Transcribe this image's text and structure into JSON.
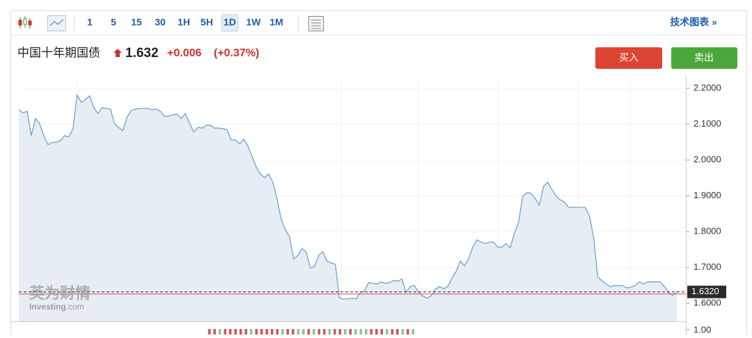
{
  "toolbar": {
    "intervals": [
      "1",
      "5",
      "15",
      "30",
      "1H",
      "5H",
      "1D",
      "1W",
      "1M"
    ],
    "selected": 6,
    "technical_link": "技术图表 »"
  },
  "header": {
    "price": "1.632",
    "change": "+0.006",
    "change_pct": "(+0.37%)",
    "buy": "买入",
    "sell": "卖出"
  },
  "watermark": {
    "brand": "英为财情",
    "site": "Investing",
    "domain": ".com"
  },
  "chart_data": {
    "type": "area",
    "title": "中国十年期国债",
    "color": "#6fa3cc",
    "fill": "#e6edf5",
    "values": [
      2.14,
      2.132,
      2.136,
      2.068,
      2.116,
      2.101,
      2.068,
      2.043,
      2.049,
      2.05,
      2.054,
      2.068,
      2.064,
      2.087,
      2.181,
      2.161,
      2.169,
      2.179,
      2.146,
      2.13,
      2.146,
      2.144,
      2.142,
      2.101,
      2.091,
      2.082,
      2.12,
      2.138,
      2.142,
      2.144,
      2.144,
      2.144,
      2.14,
      2.142,
      2.136,
      2.122,
      2.122,
      2.126,
      2.128,
      2.116,
      2.13,
      2.103,
      2.078,
      2.091,
      2.089,
      2.097,
      2.097,
      2.089,
      2.089,
      2.087,
      2.085,
      2.056,
      2.056,
      2.045,
      2.058,
      2.039,
      2.01,
      1.981,
      1.961,
      1.951,
      1.961,
      1.938,
      1.893,
      1.835,
      1.806,
      1.786,
      1.724,
      1.734,
      1.753,
      1.744,
      1.699,
      1.703,
      1.734,
      1.744,
      1.718,
      1.713,
      1.709,
      1.615,
      1.612,
      1.612,
      1.615,
      1.612,
      1.631,
      1.635,
      1.658,
      1.656,
      1.654,
      1.66,
      1.656,
      1.658,
      1.664,
      1.662,
      1.668,
      1.631,
      1.647,
      1.65,
      1.631,
      1.621,
      1.615,
      1.621,
      1.639,
      1.647,
      1.641,
      1.647,
      1.67,
      1.689,
      1.718,
      1.705,
      1.724,
      1.757,
      1.777,
      1.771,
      1.767,
      1.771,
      1.771,
      1.757,
      1.757,
      1.767,
      1.755,
      1.796,
      1.825,
      1.899,
      1.909,
      1.907,
      1.893,
      1.874,
      1.926,
      1.938,
      1.918,
      1.899,
      1.889,
      1.883,
      1.868,
      1.868,
      1.868,
      1.868,
      1.868,
      1.845,
      1.786,
      1.674,
      1.664,
      1.654,
      1.647,
      1.65,
      1.65,
      1.65,
      1.643,
      1.645,
      1.65,
      1.66,
      1.654,
      1.66,
      1.66,
      1.66,
      1.66,
      1.647,
      1.631,
      1.623,
      1.632
    ],
    "ylim": [
      1.55,
      2.233
    ],
    "yticks": [
      {
        "value": 2.2,
        "label": "2.2000"
      },
      {
        "value": 2.1,
        "label": "2.1000"
      },
      {
        "value": 2.0,
        "label": "2.0000"
      },
      {
        "value": 1.9,
        "label": "1.9000"
      },
      {
        "value": 1.8,
        "label": "1.8000"
      },
      {
        "value": 1.7,
        "label": "1.7000"
      },
      {
        "value": 1.6,
        "label": "1.6000"
      }
    ],
    "last_price": {
      "value": 1.632,
      "label": "1.6320"
    },
    "volume": {
      "values": [
        1,
        1,
        1,
        1,
        1,
        1,
        1,
        1,
        1,
        1,
        1,
        1,
        1,
        1,
        1,
        1,
        1,
        1,
        1,
        1,
        1,
        1,
        1,
        1,
        1,
        1,
        1,
        1,
        1,
        1,
        1,
        1,
        1,
        1,
        1,
        1,
        1,
        1,
        1,
        1
      ],
      "colors": [
        "#d9534f",
        "#d9534f",
        "#8fc58f",
        "#d9534f",
        "#d9534f",
        "#d9534f",
        "#d9534f",
        "#d9534f",
        "#8fc58f",
        "#d9534f",
        "#d9534f",
        "#d9534f",
        "#d9534f",
        "#d9534f",
        "#8fc58f",
        "#d9534f",
        "#d9534f",
        "#8fc58f",
        "#8fc58f",
        "#d9534f",
        "#8fc58f",
        "#d9534f",
        "#d9534f",
        "#8fc58f",
        "#d9534f",
        "#d9534f",
        "#8fc58f",
        "#d9534f",
        "#8fc58f",
        "#8fc58f",
        "#8fc58f",
        "#d9534f",
        "#d9534f",
        "#d9534f",
        "#8fc58f",
        "#d9534f",
        "#d9534f",
        "#8fc58f",
        "#d9534f",
        "#8fc58f"
      ],
      "ylim": [
        0,
        1
      ],
      "yticks": [
        {
          "value": 1,
          "label": "1.00"
        }
      ]
    }
  }
}
